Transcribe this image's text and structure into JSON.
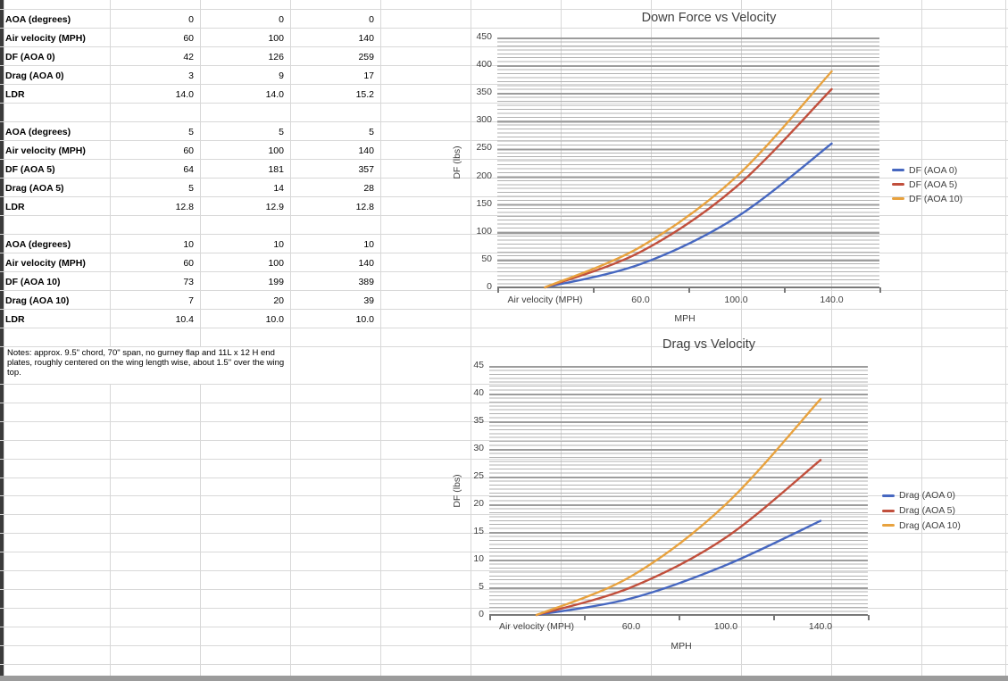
{
  "table": {
    "groups": [
      {
        "rows": [
          {
            "label": "AOA (degrees)",
            "values": [
              "0",
              "0",
              "0"
            ]
          },
          {
            "label": "Air velocity (MPH)",
            "values": [
              "60",
              "100",
              "140"
            ]
          },
          {
            "label": "DF (AOA 0)",
            "values": [
              "42",
              "126",
              "259"
            ]
          },
          {
            "label": "Drag (AOA 0)",
            "values": [
              "3",
              "9",
              "17"
            ]
          },
          {
            "label": "LDR",
            "values": [
              "14.0",
              "14.0",
              "15.2"
            ]
          }
        ]
      },
      {
        "rows": [
          {
            "label": "AOA (degrees)",
            "values": [
              "5",
              "5",
              "5"
            ]
          },
          {
            "label": "Air velocity (MPH)",
            "values": [
              "60",
              "100",
              "140"
            ]
          },
          {
            "label": "DF (AOA 5)",
            "values": [
              "64",
              "181",
              "357"
            ]
          },
          {
            "label": "Drag (AOA 5)",
            "values": [
              "5",
              "14",
              "28"
            ]
          },
          {
            "label": "LDR",
            "values": [
              "12.8",
              "12.9",
              "12.8"
            ]
          }
        ]
      },
      {
        "rows": [
          {
            "label": "AOA (degrees)",
            "values": [
              "10",
              "10",
              "10"
            ]
          },
          {
            "label": "Air velocity (MPH)",
            "values": [
              "60",
              "100",
              "140"
            ]
          },
          {
            "label": "DF (AOA 10)",
            "values": [
              "73",
              "199",
              "389"
            ]
          },
          {
            "label": "Drag (AOA 10)",
            "values": [
              "7",
              "20",
              "39"
            ]
          },
          {
            "label": "LDR",
            "values": [
              "10.4",
              "10.0",
              "10.0"
            ]
          }
        ]
      }
    ]
  },
  "notes": {
    "text": "Notes: approx. 9.5\" chord, 70\" span, no gurney flap and 11L x 12 H end plates, roughly centered on the wing length wise, about 1.5\" over the wing top."
  },
  "chart_data": [
    {
      "type": "line",
      "title": "Down Force vs Velocity",
      "categories": [
        "Air velocity (MPH)",
        "60.0",
        "100.0",
        "140.0"
      ],
      "series": [
        {
          "name": "DF (AOA 0)",
          "color": "#4667C0",
          "values": [
            0,
            42,
            126,
            259
          ]
        },
        {
          "name": "DF (AOA 5)",
          "color": "#C14F3C",
          "values": [
            0,
            64,
            181,
            357
          ]
        },
        {
          "name": "DF (AOA 10)",
          "color": "#E8A23E",
          "values": [
            0,
            73,
            199,
            389
          ]
        }
      ],
      "xlabel": "MPH",
      "ylabel": "DF (lbs)",
      "ylim": [
        0,
        450
      ],
      "yticks": [
        "0",
        "50",
        "100",
        "150",
        "200",
        "250",
        "300",
        "350",
        "400",
        "450"
      ],
      "grid": "horizontal-minor",
      "legend_position": "right"
    },
    {
      "type": "line",
      "title": "Drag vs Velocity",
      "categories": [
        "Air velocity (MPH)",
        "60.0",
        "100.0",
        "140.0"
      ],
      "series": [
        {
          "name": "Drag (AOA 0)",
          "color": "#4667C0",
          "values": [
            0,
            3,
            9,
            17
          ]
        },
        {
          "name": "Drag (AOA 5)",
          "color": "#C14F3C",
          "values": [
            0,
            5,
            14,
            28
          ]
        },
        {
          "name": "Drag (AOA 10)",
          "color": "#E8A23E",
          "values": [
            0,
            7,
            20,
            39
          ]
        }
      ],
      "xlabel": "MPH",
      "ylabel": "DF (lbs)",
      "ylim": [
        0,
        45
      ],
      "yticks": [
        "0",
        "5",
        "10",
        "15",
        "20",
        "25",
        "30",
        "35",
        "40",
        "45"
      ],
      "grid": "horizontal-minor",
      "legend_position": "right"
    }
  ]
}
